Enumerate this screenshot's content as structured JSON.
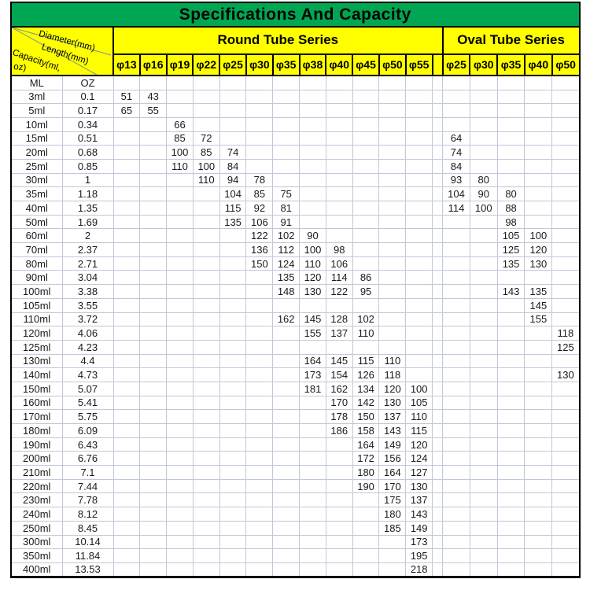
{
  "title": "Specifications And Capacity",
  "corner": {
    "diameter_label": "Diameter(mm)",
    "length_label": "Length(mm)",
    "capacity_label1": "Capacity(ml,",
    "capacity_label2": "oz)"
  },
  "round_series": {
    "label": "Round Tube Series",
    "columns": [
      "φ13",
      "φ16",
      "φ19",
      "φ22",
      "φ25",
      "φ30",
      "φ35",
      "φ38",
      "φ40",
      "φ45",
      "φ50",
      "φ55"
    ]
  },
  "oval_series": {
    "label": "Oval Tube Series",
    "columns": [
      "φ25",
      "φ30",
      "φ35",
      "φ40",
      "φ50"
    ]
  },
  "unit_headers": {
    "ml": "ML",
    "oz": "OZ"
  },
  "colors": {
    "header_green": "#00a651",
    "header_yellow": "#ffff00",
    "grid_line": "#c2c7db",
    "border_black": "#000000"
  },
  "rows": [
    {
      "ml": "3ml",
      "oz": "0.1",
      "round": [
        "51",
        "43"
      ],
      "oval": []
    },
    {
      "ml": "5ml",
      "oz": "0.17",
      "round": [
        "65",
        "55"
      ],
      "oval": []
    },
    {
      "ml": "10ml",
      "oz": "0.34",
      "round": [
        "",
        "",
        "66"
      ],
      "oval": []
    },
    {
      "ml": "15ml",
      "oz": "0.51",
      "round": [
        "",
        "",
        "85",
        "72"
      ],
      "oval": [
        "64"
      ]
    },
    {
      "ml": "20ml",
      "oz": "0.68",
      "round": [
        "",
        "",
        "100",
        "85",
        "74"
      ],
      "oval": [
        "74"
      ]
    },
    {
      "ml": "25ml",
      "oz": "0.85",
      "round": [
        "",
        "",
        "110",
        "100",
        "84"
      ],
      "oval": [
        "84"
      ]
    },
    {
      "ml": "30ml",
      "oz": "1",
      "round": [
        "",
        "",
        "",
        "110",
        "94",
        "78"
      ],
      "oval": [
        "93",
        "80"
      ]
    },
    {
      "ml": "35ml",
      "oz": "1.18",
      "round": [
        "",
        "",
        "",
        "",
        "104",
        "85",
        "75"
      ],
      "oval": [
        "104",
        "90",
        "80"
      ]
    },
    {
      "ml": "40ml",
      "oz": "1.35",
      "round": [
        "",
        "",
        "",
        "",
        "115",
        "92",
        "81"
      ],
      "oval": [
        "114",
        "100",
        "88"
      ]
    },
    {
      "ml": "50ml",
      "oz": "1.69",
      "round": [
        "",
        "",
        "",
        "",
        "135",
        "106",
        "91"
      ],
      "oval": [
        "",
        "",
        "98"
      ]
    },
    {
      "ml": "60ml",
      "oz": "2",
      "round": [
        "",
        "",
        "",
        "",
        "",
        "122",
        "102",
        "90"
      ],
      "oval": [
        "",
        "",
        "105",
        "100"
      ]
    },
    {
      "ml": "70ml",
      "oz": "2.37",
      "round": [
        "",
        "",
        "",
        "",
        "",
        "136",
        "112",
        "100",
        "98"
      ],
      "oval": [
        "",
        "",
        "125",
        "120"
      ]
    },
    {
      "ml": "80ml",
      "oz": "2.71",
      "round": [
        "",
        "",
        "",
        "",
        "",
        "150",
        "124",
        "110",
        "106"
      ],
      "oval": [
        "",
        "",
        "135",
        "130"
      ]
    },
    {
      "ml": "90ml",
      "oz": "3.04",
      "round": [
        "",
        "",
        "",
        "",
        "",
        "",
        "135",
        "120",
        "114",
        "86"
      ],
      "oval": []
    },
    {
      "ml": "100ml",
      "oz": "3.38",
      "round": [
        "",
        "",
        "",
        "",
        "",
        "",
        "148",
        "130",
        "122",
        "95"
      ],
      "oval": [
        "",
        "",
        "143",
        "135"
      ]
    },
    {
      "ml": "105ml",
      "oz": "3.55",
      "round": [],
      "oval": [
        "",
        "",
        "",
        "145"
      ]
    },
    {
      "ml": "110ml",
      "oz": "3.72",
      "round": [
        "",
        "",
        "",
        "",
        "",
        "",
        "162",
        "145",
        "128",
        "102"
      ],
      "oval": [
        "",
        "",
        "",
        "155"
      ]
    },
    {
      "ml": "120ml",
      "oz": "4.06",
      "round": [
        "",
        "",
        "",
        "",
        "",
        "",
        "",
        "155",
        "137",
        "110"
      ],
      "oval": [
        "",
        "",
        "",
        "",
        "118"
      ]
    },
    {
      "ml": "125ml",
      "oz": "4.23",
      "round": [],
      "oval": [
        "",
        "",
        "",
        "",
        "125"
      ]
    },
    {
      "ml": "130ml",
      "oz": "4.4",
      "round": [
        "",
        "",
        "",
        "",
        "",
        "",
        "",
        "164",
        "145",
        "115",
        "110"
      ],
      "oval": []
    },
    {
      "ml": "140ml",
      "oz": "4.73",
      "round": [
        "",
        "",
        "",
        "",
        "",
        "",
        "",
        "173",
        "154",
        "126",
        "118"
      ],
      "oval": [
        "",
        "",
        "",
        "",
        "130"
      ]
    },
    {
      "ml": "150ml",
      "oz": "5.07",
      "round": [
        "",
        "",
        "",
        "",
        "",
        "",
        "",
        "181",
        "162",
        "134",
        "120",
        "100"
      ],
      "oval": []
    },
    {
      "ml": "160ml",
      "oz": "5.41",
      "round": [
        "",
        "",
        "",
        "",
        "",
        "",
        "",
        "",
        "170",
        "142",
        "130",
        "105"
      ],
      "oval": []
    },
    {
      "ml": "170ml",
      "oz": "5.75",
      "round": [
        "",
        "",
        "",
        "",
        "",
        "",
        "",
        "",
        "178",
        "150",
        "137",
        "110"
      ],
      "oval": []
    },
    {
      "ml": "180ml",
      "oz": "6.09",
      "round": [
        "",
        "",
        "",
        "",
        "",
        "",
        "",
        "",
        "186",
        "158",
        "143",
        "115"
      ],
      "oval": []
    },
    {
      "ml": "190ml",
      "oz": "6.43",
      "round": [
        "",
        "",
        "",
        "",
        "",
        "",
        "",
        "",
        "",
        "164",
        "149",
        "120"
      ],
      "oval": []
    },
    {
      "ml": "200ml",
      "oz": "6.76",
      "round": [
        "",
        "",
        "",
        "",
        "",
        "",
        "",
        "",
        "",
        "172",
        "156",
        "124"
      ],
      "oval": []
    },
    {
      "ml": "210ml",
      "oz": "7.1",
      "round": [
        "",
        "",
        "",
        "",
        "",
        "",
        "",
        "",
        "",
        "180",
        "164",
        "127"
      ],
      "oval": []
    },
    {
      "ml": "220ml",
      "oz": "7.44",
      "round": [
        "",
        "",
        "",
        "",
        "",
        "",
        "",
        "",
        "",
        "190",
        "170",
        "130"
      ],
      "oval": []
    },
    {
      "ml": "230ml",
      "oz": "7.78",
      "round": [
        "",
        "",
        "",
        "",
        "",
        "",
        "",
        "",
        "",
        "",
        "175",
        "137"
      ],
      "oval": []
    },
    {
      "ml": "240ml",
      "oz": "8.12",
      "round": [
        "",
        "",
        "",
        "",
        "",
        "",
        "",
        "",
        "",
        "",
        "180",
        "143"
      ],
      "oval": []
    },
    {
      "ml": "250ml",
      "oz": "8.45",
      "round": [
        "",
        "",
        "",
        "",
        "",
        "",
        "",
        "",
        "",
        "",
        "185",
        "149"
      ],
      "oval": []
    },
    {
      "ml": "300ml",
      "oz": "10.14",
      "round": [
        "",
        "",
        "",
        "",
        "",
        "",
        "",
        "",
        "",
        "",
        "",
        "173"
      ],
      "oval": []
    },
    {
      "ml": "350ml",
      "oz": "11.84",
      "round": [
        "",
        "",
        "",
        "",
        "",
        "",
        "",
        "",
        "",
        "",
        "",
        "195"
      ],
      "oval": []
    },
    {
      "ml": "400ml",
      "oz": "13.53",
      "round": [
        "",
        "",
        "",
        "",
        "",
        "",
        "",
        "",
        "",
        "",
        "",
        "218"
      ],
      "oval": []
    }
  ]
}
